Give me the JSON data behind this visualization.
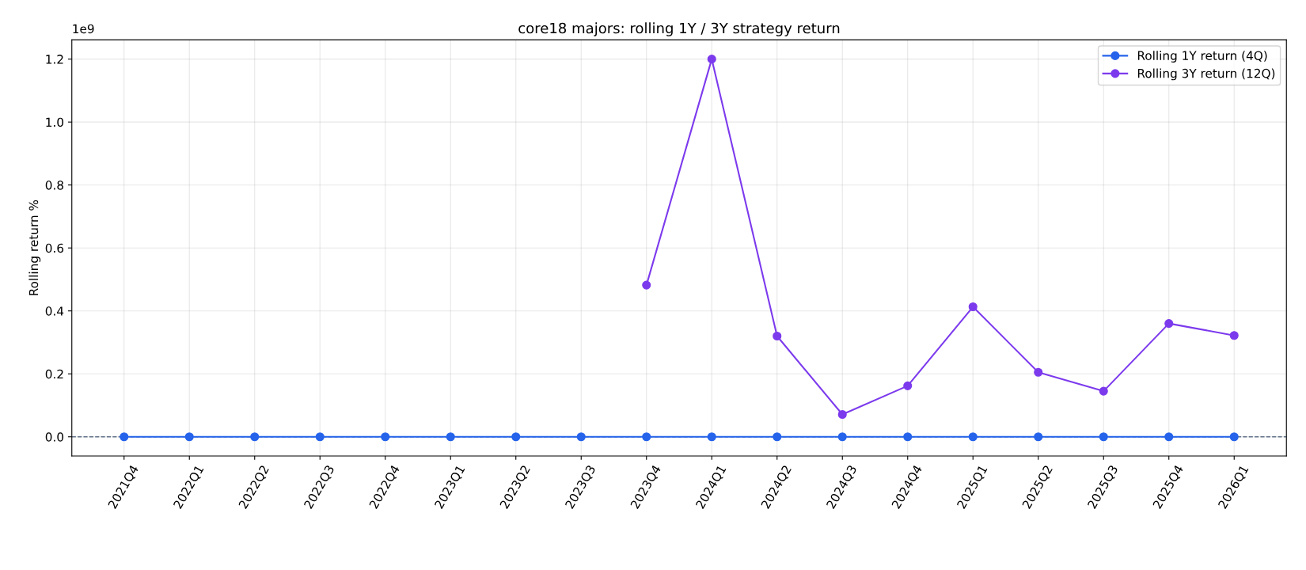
{
  "chart_data": {
    "type": "line",
    "title": "core18 majors: rolling 1Y / 3Y strategy return",
    "ylabel": "Rolling return %",
    "categories": [
      "2021Q4",
      "2022Q1",
      "2022Q2",
      "2022Q3",
      "2022Q4",
      "2023Q1",
      "2023Q2",
      "2023Q3",
      "2023Q4",
      "2024Q1",
      "2024Q2",
      "2024Q3",
      "2024Q4",
      "2025Q1",
      "2025Q2",
      "2025Q3",
      "2025Q4",
      "2026Q1"
    ],
    "series": [
      {
        "name": "Rolling 1Y return (4Q)",
        "color": "#2563eb",
        "values": [
          0,
          0,
          0,
          0,
          0,
          0,
          0,
          0,
          0,
          0,
          0,
          0,
          0,
          0,
          0,
          0,
          0,
          0
        ]
      },
      {
        "name": "Rolling 3Y return (12Q)",
        "color": "#7c3aed",
        "values": [
          null,
          null,
          null,
          null,
          null,
          null,
          null,
          null,
          0.482,
          1.2,
          0.32,
          0.071,
          0.162,
          0.413,
          0.205,
          0.145,
          0.36,
          0.322
        ]
      }
    ],
    "ylim": [
      -0.061,
      1.261
    ],
    "yticks": [
      {
        "value": 0,
        "label": "0.0"
      },
      0.2,
      0.4,
      0.6,
      0.8,
      {
        "value": 1,
        "label": "1.0"
      },
      1.2
    ],
    "annotations": [
      "1e9"
    ],
    "ref_lines": [
      {
        "axis": "y",
        "value": 0,
        "color": "#64748b",
        "line_style": "dashed"
      }
    ],
    "grid": true,
    "legend": "top right",
    "marker": "circle",
    "line_style": "solid"
  }
}
